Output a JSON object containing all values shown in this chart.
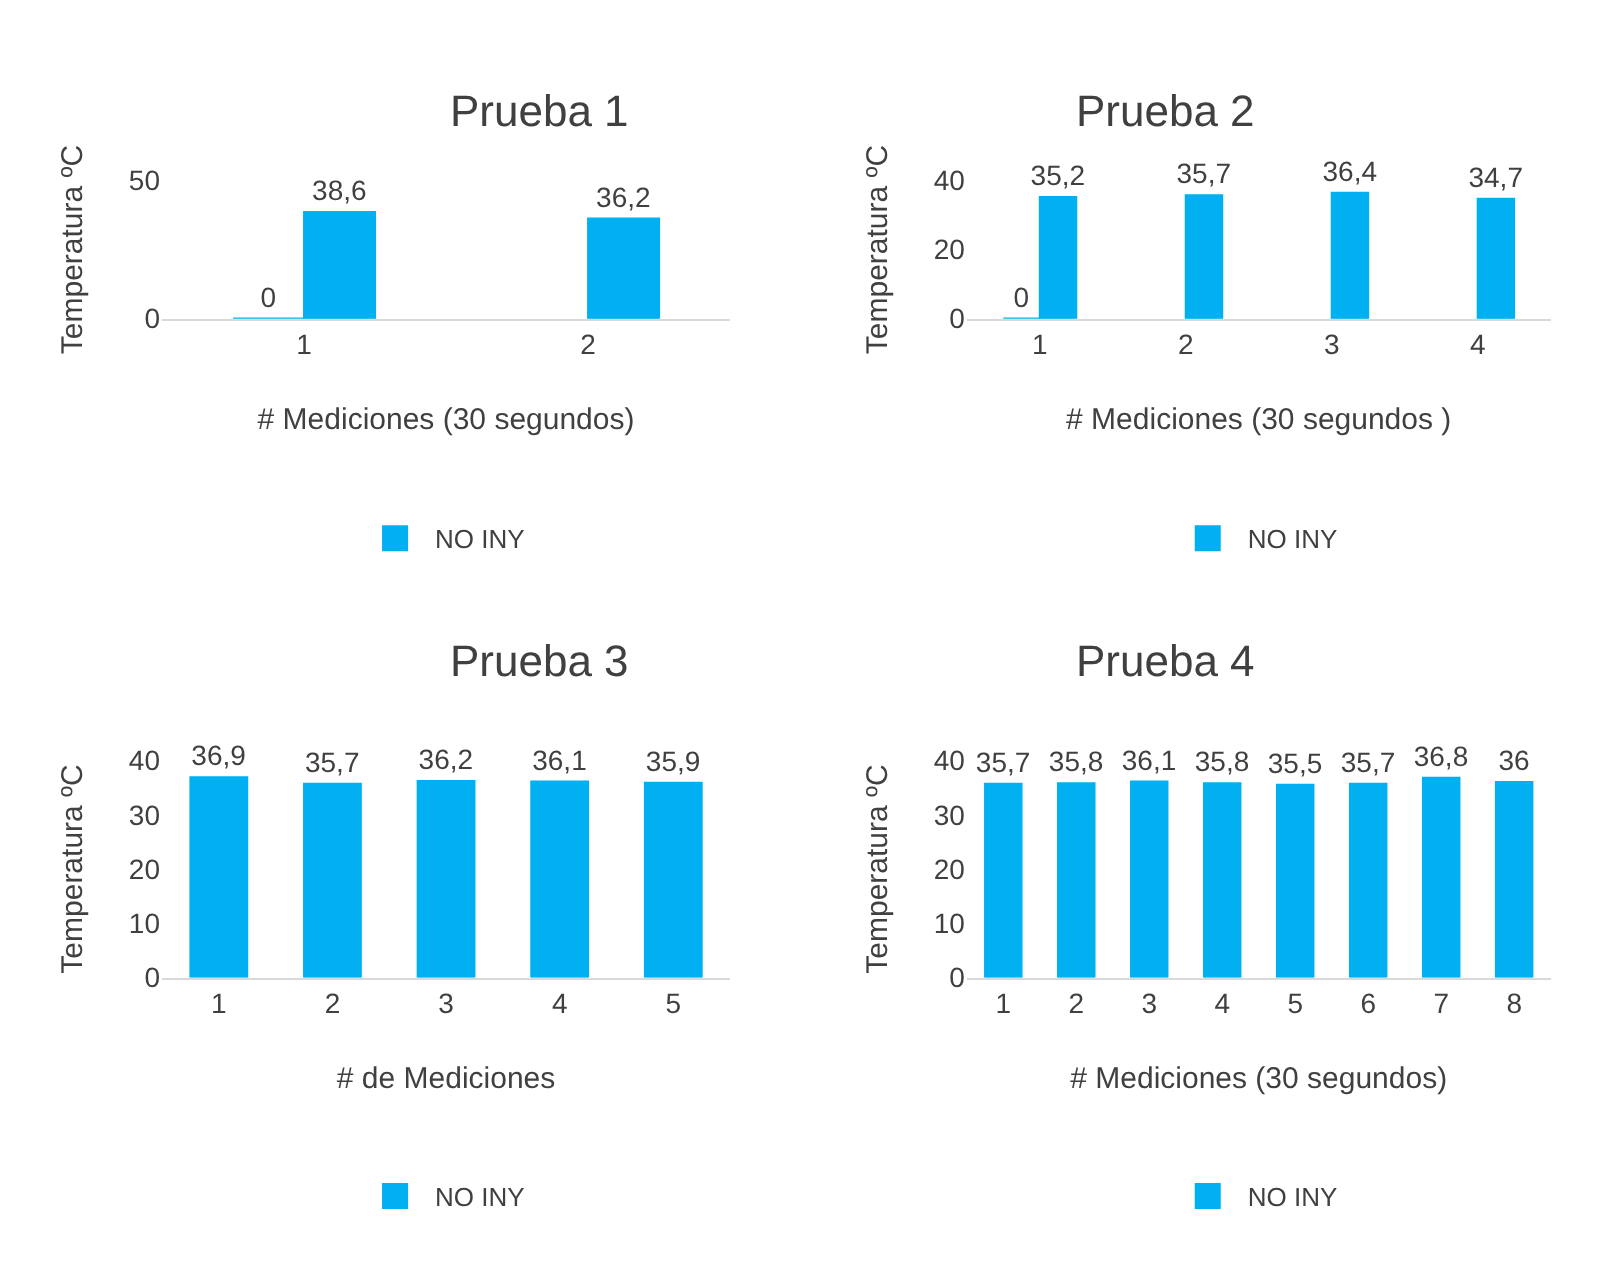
{
  "chart_data": [
    {
      "type": "bar",
      "title": "Prueba 1",
      "xlabel": "# Mediciones (30 segundos)",
      "ylabel": "Temperatura ºC",
      "categories": [
        "1",
        "2"
      ],
      "series": [
        {
          "color": "#00b0f0",
          "values": [
            0,
            null
          ],
          "value_labels": [
            "0",
            null
          ]
        },
        {
          "name": "NO INY",
          "color": "#00b0f0",
          "values": [
            38.6,
            36.2
          ],
          "value_labels": [
            "38,6",
            "36,2"
          ]
        }
      ],
      "ylim": [
        0,
        50
      ],
      "yticks": [
        0,
        50
      ],
      "legend": "bottom"
    },
    {
      "type": "bar",
      "title": "Prueba 2",
      "xlabel": "# Mediciones (30 segundos )",
      "ylabel": "Temperatura ºC",
      "categories": [
        "1",
        "2",
        "3",
        "4"
      ],
      "series": [
        {
          "color": "#00b0f0",
          "values": [
            0,
            null,
            null,
            null
          ],
          "value_labels": [
            "0",
            null,
            null,
            null
          ]
        },
        {
          "name": "NO INY",
          "color": "#00b0f0",
          "values": [
            35.2,
            35.7,
            36.4,
            34.7
          ],
          "value_labels": [
            "35,2",
            "35,7",
            "36,4",
            "34,7"
          ]
        }
      ],
      "ylim": [
        0,
        40
      ],
      "yticks": [
        0,
        20,
        40
      ],
      "legend": "bottom"
    },
    {
      "type": "bar",
      "title": "Prueba 3",
      "xlabel": "# de Mediciones",
      "ylabel": "Temperatura ºC",
      "categories": [
        "1",
        "2",
        "3",
        "4",
        "5"
      ],
      "series": [
        {
          "name": "NO INY",
          "color": "#00b0f0",
          "values": [
            36.9,
            35.7,
            36.2,
            36.1,
            35.9
          ],
          "value_labels": [
            "36,9",
            "35,7",
            "36,2",
            "36,1",
            "35,9"
          ]
        }
      ],
      "ylim": [
        0,
        40
      ],
      "yticks": [
        0,
        10,
        20,
        30,
        40
      ],
      "legend": "bottom"
    },
    {
      "type": "bar",
      "title": "Prueba 4",
      "xlabel": "# Mediciones (30 segundos)",
      "ylabel": "Temperatura ºC",
      "categories": [
        "1",
        "2",
        "3",
        "4",
        "5",
        "6",
        "7",
        "8"
      ],
      "series": [
        {
          "name": "NO INY",
          "color": "#00b0f0",
          "values": [
            35.7,
            35.8,
            36.1,
            35.8,
            35.5,
            35.7,
            36.8,
            36
          ],
          "value_labels": [
            "35,7",
            "35,8",
            "36,1",
            "35,8",
            "35,5",
            "35,7",
            "36,8",
            "36"
          ]
        }
      ],
      "ylim": [
        0,
        40
      ],
      "yticks": [
        0,
        10,
        20,
        30,
        40
      ],
      "legend": "bottom"
    }
  ]
}
